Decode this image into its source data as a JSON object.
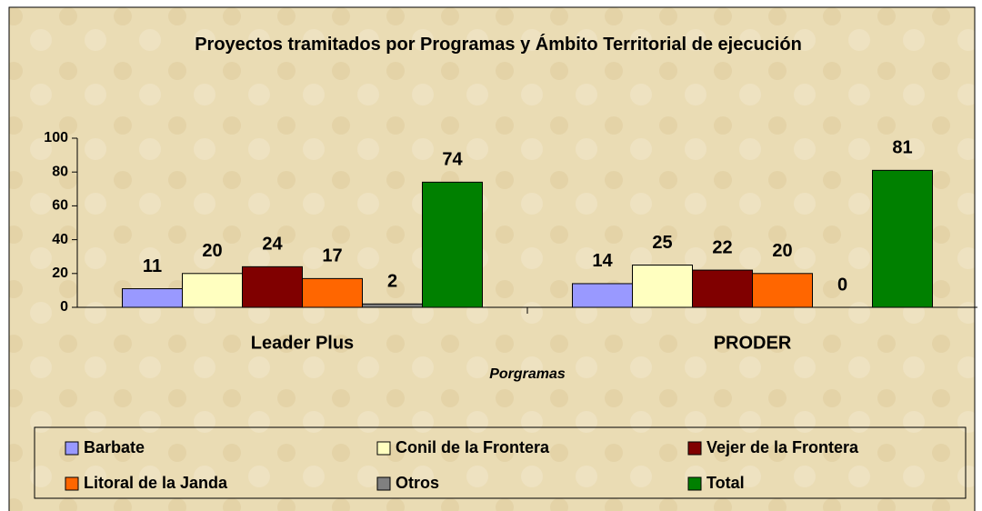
{
  "chart_data": {
    "type": "bar",
    "title": "Proyectos tramitados por Programas y Ámbito Territorial de ejecución",
    "x_label": "Porgramas",
    "categories": [
      "Leader Plus",
      "PRODER"
    ],
    "series": [
      {
        "name": "Barbate",
        "color": "#9999ff",
        "values": [
          11,
          14
        ]
      },
      {
        "name": "Conil de la Frontera",
        "color": "#ffffc0",
        "values": [
          20,
          25
        ]
      },
      {
        "name": "Vejer de la Frontera",
        "color": "#800000",
        "values": [
          24,
          22
        ]
      },
      {
        "name": "Litoral de la Janda",
        "color": "#ff6600",
        "values": [
          17,
          20
        ]
      },
      {
        "name": "Otros",
        "color": "#808080",
        "values": [
          2,
          0
        ]
      },
      {
        "name": "Total",
        "color": "#008000",
        "values": [
          74,
          81
        ]
      }
    ],
    "ylim": [
      0,
      100
    ],
    "yticks": [
      0,
      20,
      40,
      60,
      80,
      100
    ],
    "legend": "bottom"
  }
}
